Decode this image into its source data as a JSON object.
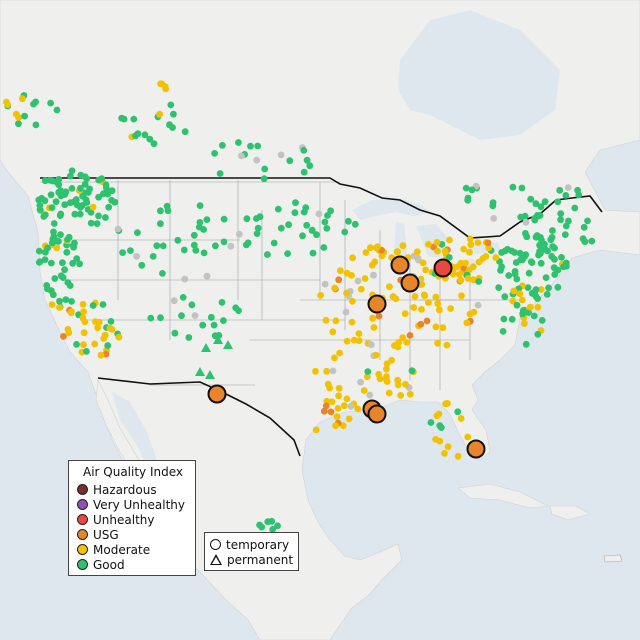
{
  "map": {
    "legend_aqi": {
      "title": "Air Quality Index",
      "items": [
        {
          "label": "Hazardous",
          "color": "#7b2c2c"
        },
        {
          "label": "Very Unhealthy",
          "color": "#8f50b4"
        },
        {
          "label": "Unhealthy",
          "color": "#e8483f"
        },
        {
          "label": "USG",
          "color": "#e8852a"
        },
        {
          "label": "Moderate",
          "color": "#f2c200"
        },
        {
          "label": "Good",
          "color": "#2ec26e"
        }
      ]
    },
    "legend_type": {
      "items": [
        {
          "label": "temporary",
          "shape": "circle"
        },
        {
          "label": "permanent",
          "shape": "triangle"
        }
      ]
    },
    "colors": {
      "water": "#dfe7ee",
      "land": "#efefed",
      "no_data": "#c2c2c2"
    }
  }
}
